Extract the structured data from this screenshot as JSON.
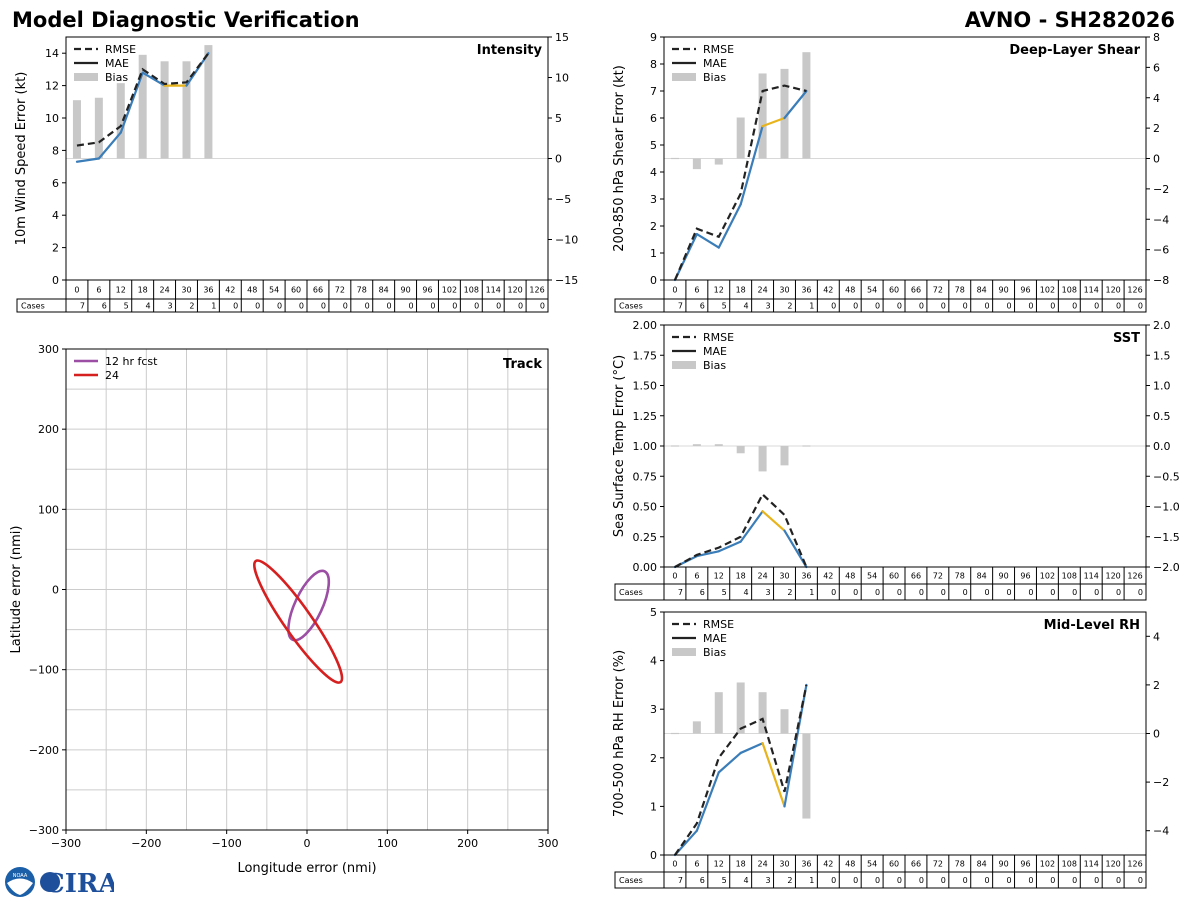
{
  "header": {
    "title": "Model Diagnostic Verification",
    "model_storm": "AVNO - SH282026"
  },
  "logos": {
    "noaa": "NOAA",
    "cira": "CIRA"
  },
  "colors": {
    "rmse": "#222222",
    "mae": "#3a7db8",
    "mae_highlight": "#e8b41c",
    "bias": "#c8c8c8",
    "grid": "#cccccc",
    "track12": "#9b4ea3",
    "track24": "#d62020"
  },
  "legend": {
    "rmse": "RMSE",
    "mae": "MAE",
    "bias": "Bias"
  },
  "cases_table": {
    "row_label": "Cases",
    "hours": [
      "0",
      "6",
      "12",
      "18",
      "24",
      "30",
      "36",
      "42",
      "48",
      "54",
      "60",
      "66",
      "72",
      "78",
      "84",
      "90",
      "96",
      "102",
      "108",
      "114",
      "120",
      "126"
    ],
    "counts": [
      "7",
      "6",
      "5",
      "4",
      "3",
      "2",
      "1",
      "0",
      "0",
      "0",
      "0",
      "0",
      "0",
      "0",
      "0",
      "0",
      "0",
      "0",
      "0",
      "0",
      "0",
      "0"
    ]
  },
  "chart_data": [
    {
      "type": "line",
      "id": "intensity",
      "title": "Intensity",
      "ylabel": "10m Wind Speed Error (kt)",
      "ylim": [
        0,
        15
      ],
      "yticks": [
        0,
        2,
        4,
        6,
        8,
        10,
        12,
        14
      ],
      "y2lim": [
        -15,
        15
      ],
      "y2ticks": [
        -15,
        -10,
        -5,
        0,
        5,
        10,
        15
      ],
      "y2ticklabels": [
        "−15",
        "−10",
        "−5",
        "0",
        "5",
        "10",
        "15"
      ],
      "x": [
        0,
        6,
        12,
        18,
        24,
        30,
        36
      ],
      "rmse": [
        8.3,
        8.5,
        9.5,
        13.0,
        12.1,
        12.2,
        14.0
      ],
      "mae": [
        7.3,
        7.5,
        9.1,
        12.8,
        12.0,
        12.0,
        14.0
      ],
      "mae_highlight_x": [
        24,
        30
      ],
      "bias": [
        7.2,
        7.5,
        9.3,
        12.8,
        12.0,
        12.0,
        14.0
      ]
    },
    {
      "type": "line",
      "id": "shear",
      "title": "Deep-Layer Shear",
      "ylabel": "200-850 hPa Shear Error (kt)",
      "ylim": [
        0,
        9
      ],
      "yticks": [
        0,
        1,
        2,
        3,
        4,
        5,
        6,
        7,
        8,
        9
      ],
      "y2lim": [
        -8,
        8
      ],
      "y2ticks": [
        -8,
        -6,
        -4,
        -2,
        0,
        2,
        4,
        6,
        8
      ],
      "y2ticklabels": [
        "−8",
        "−6",
        "−4",
        "−2",
        "0",
        "2",
        "4",
        "6",
        "8"
      ],
      "x": [
        0,
        6,
        12,
        18,
        24,
        30,
        36
      ],
      "rmse": [
        0.0,
        1.9,
        1.6,
        3.2,
        7.0,
        7.2,
        7.0
      ],
      "mae": [
        0.0,
        1.7,
        1.2,
        2.8,
        5.7,
        6.0,
        7.0
      ],
      "mae_highlight_x": [
        24,
        30
      ],
      "bias": [
        0.0,
        -0.7,
        -0.4,
        2.7,
        5.6,
        5.9,
        7.0
      ]
    },
    {
      "type": "line",
      "id": "sst",
      "title": "SST",
      "ylabel": "Sea Surface Temp Error (°C)",
      "ylim": [
        0,
        2
      ],
      "yticks": [
        0,
        0.25,
        0.5,
        0.75,
        1,
        1.25,
        1.5,
        1.75,
        2
      ],
      "yticklabels": [
        "0.00",
        "0.25",
        "0.50",
        "0.75",
        "1.00",
        "1.25",
        "1.50",
        "1.75",
        "2.00"
      ],
      "y2lim": [
        -2,
        2
      ],
      "y2ticks": [
        -2,
        -1.5,
        -1,
        -0.5,
        0,
        0.5,
        1,
        1.5,
        2
      ],
      "y2ticklabels": [
        "−2.0",
        "−1.5",
        "−1.0",
        "−0.5",
        "0.0",
        "0.5",
        "1.0",
        "1.5",
        "2.0"
      ],
      "x": [
        0,
        6,
        12,
        18,
        24,
        30,
        36
      ],
      "rmse": [
        0.0,
        0.1,
        0.16,
        0.25,
        0.6,
        0.43,
        0.0
      ],
      "mae": [
        0.0,
        0.09,
        0.13,
        0.21,
        0.46,
        0.3,
        0.0
      ],
      "mae_highlight_x": [
        24,
        30
      ],
      "bias": [
        0.0,
        0.03,
        0.03,
        -0.12,
        -0.42,
        -0.32,
        -0.01
      ]
    },
    {
      "type": "line",
      "id": "rh",
      "title": "Mid-Level RH",
      "ylabel": "700-500 hPa RH Error (%)",
      "ylim": [
        0,
        5
      ],
      "yticks": [
        0,
        1,
        2,
        3,
        4,
        5
      ],
      "y2lim": [
        -5,
        5
      ],
      "y2ticks": [
        -4,
        -2,
        0,
        2,
        4
      ],
      "y2ticklabels": [
        "−4",
        "−2",
        "0",
        "2",
        "4"
      ],
      "x": [
        0,
        6,
        12,
        18,
        24,
        30,
        36
      ],
      "rmse": [
        0.0,
        0.65,
        2.0,
        2.6,
        2.8,
        1.3,
        3.5
      ],
      "mae": [
        0.0,
        0.5,
        1.7,
        2.1,
        2.3,
        1.0,
        3.5
      ],
      "mae_highlight_x": [
        24,
        30
      ],
      "bias": [
        0.0,
        0.5,
        1.7,
        2.1,
        1.7,
        1.0,
        -3.5
      ]
    },
    {
      "type": "scatter",
      "id": "track",
      "title": "Track",
      "xlabel": "Longitude error (nmi)",
      "ylabel": "Latitude error (nmi)",
      "xlim": [
        -300,
        300
      ],
      "ylim": [
        -300,
        300
      ],
      "ticks": [
        -300,
        -200,
        -100,
        0,
        100,
        200,
        300
      ],
      "ticklabels": [
        "−300",
        "−200",
        "−100",
        "0",
        "100",
        "200",
        "300"
      ],
      "ellipses": [
        {
          "label": "12 hr fcst",
          "cx": 2,
          "cy": -20,
          "a": 47,
          "b": 17,
          "angle": 65
        },
        {
          "label": "24",
          "cx": -11,
          "cy": -40,
          "a": 92,
          "b": 17,
          "angle": -55
        }
      ]
    }
  ]
}
